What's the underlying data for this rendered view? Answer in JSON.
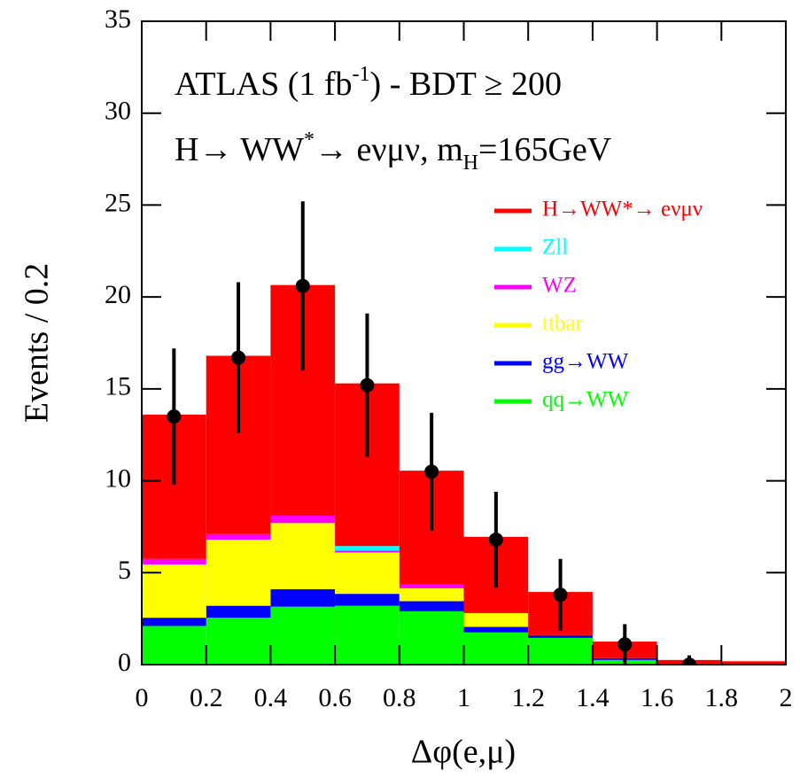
{
  "chart_data": {
    "type": "histogram",
    "xlabel": "Δφ(e,μ)",
    "ylabel": "Events / 0.2",
    "annotations": [
      [
        "ATLAS (1 fb",
        {
          "sup": "-1"
        },
        ") - BDT ≥ 200"
      ],
      [
        "H→ WW",
        {
          "sup": "*"
        },
        "→ eνμν, m",
        {
          "sub": "H"
        },
        "=165GeV"
      ]
    ],
    "bins": [
      0,
      0.2,
      0.4,
      0.6,
      0.8,
      1.0,
      1.2,
      1.4,
      1.6,
      1.8,
      2.0
    ],
    "series": [
      {
        "name": "qq→WW",
        "color": "#00ff00",
        "values": [
          2.1,
          2.55,
          3.15,
          3.2,
          2.9,
          1.75,
          1.45,
          0.25,
          0.05,
          0.03
        ]
      },
      {
        "name": "gg→WW",
        "color": "#0000ff",
        "values": [
          0.45,
          0.65,
          0.95,
          0.65,
          0.55,
          0.3,
          0.15,
          0.1,
          0,
          0
        ]
      },
      {
        "name": "ttbar",
        "color": "#ffff00",
        "values": [
          2.9,
          3.6,
          3.6,
          2.25,
          0.7,
          0.75,
          0,
          0,
          0,
          0
        ]
      },
      {
        "name": "WZ",
        "color": "#ff00ff",
        "values": [
          0.3,
          0.3,
          0.4,
          0.1,
          0.2,
          0,
          0,
          0,
          0,
          0
        ]
      },
      {
        "name": "Zll",
        "color": "#00ffff",
        "values": [
          0,
          0,
          0,
          0.25,
          0,
          0,
          0,
          0,
          0,
          0
        ]
      },
      {
        "name": "H→WW*→ eνμν",
        "color": "#ff0000",
        "values": [
          7.85,
          9.7,
          12.55,
          8.85,
          6.2,
          4.15,
          2.35,
          0.9,
          0.2,
          0.15
        ]
      }
    ],
    "data_points": {
      "color": "#000000",
      "x": [
        0.1,
        0.3,
        0.5,
        0.7,
        0.9,
        1.1,
        1.3,
        1.5,
        1.7
      ],
      "values": [
        13.5,
        16.7,
        20.6,
        15.2,
        10.5,
        6.8,
        3.8,
        1.1,
        0
      ],
      "errors": [
        3.7,
        4.1,
        4.6,
        3.9,
        3.2,
        2.6,
        1.95,
        1.1,
        0.5
      ]
    },
    "xlim": [
      0,
      2
    ],
    "ylim": [
      0,
      35
    ],
    "xticks": [
      0,
      0.2,
      0.4,
      0.6,
      0.8,
      1,
      1.2,
      1.4,
      1.6,
      1.8,
      2
    ],
    "yticks": [
      0,
      5,
      10,
      15,
      20,
      25,
      30,
      35
    ],
    "legend": "upper right"
  }
}
